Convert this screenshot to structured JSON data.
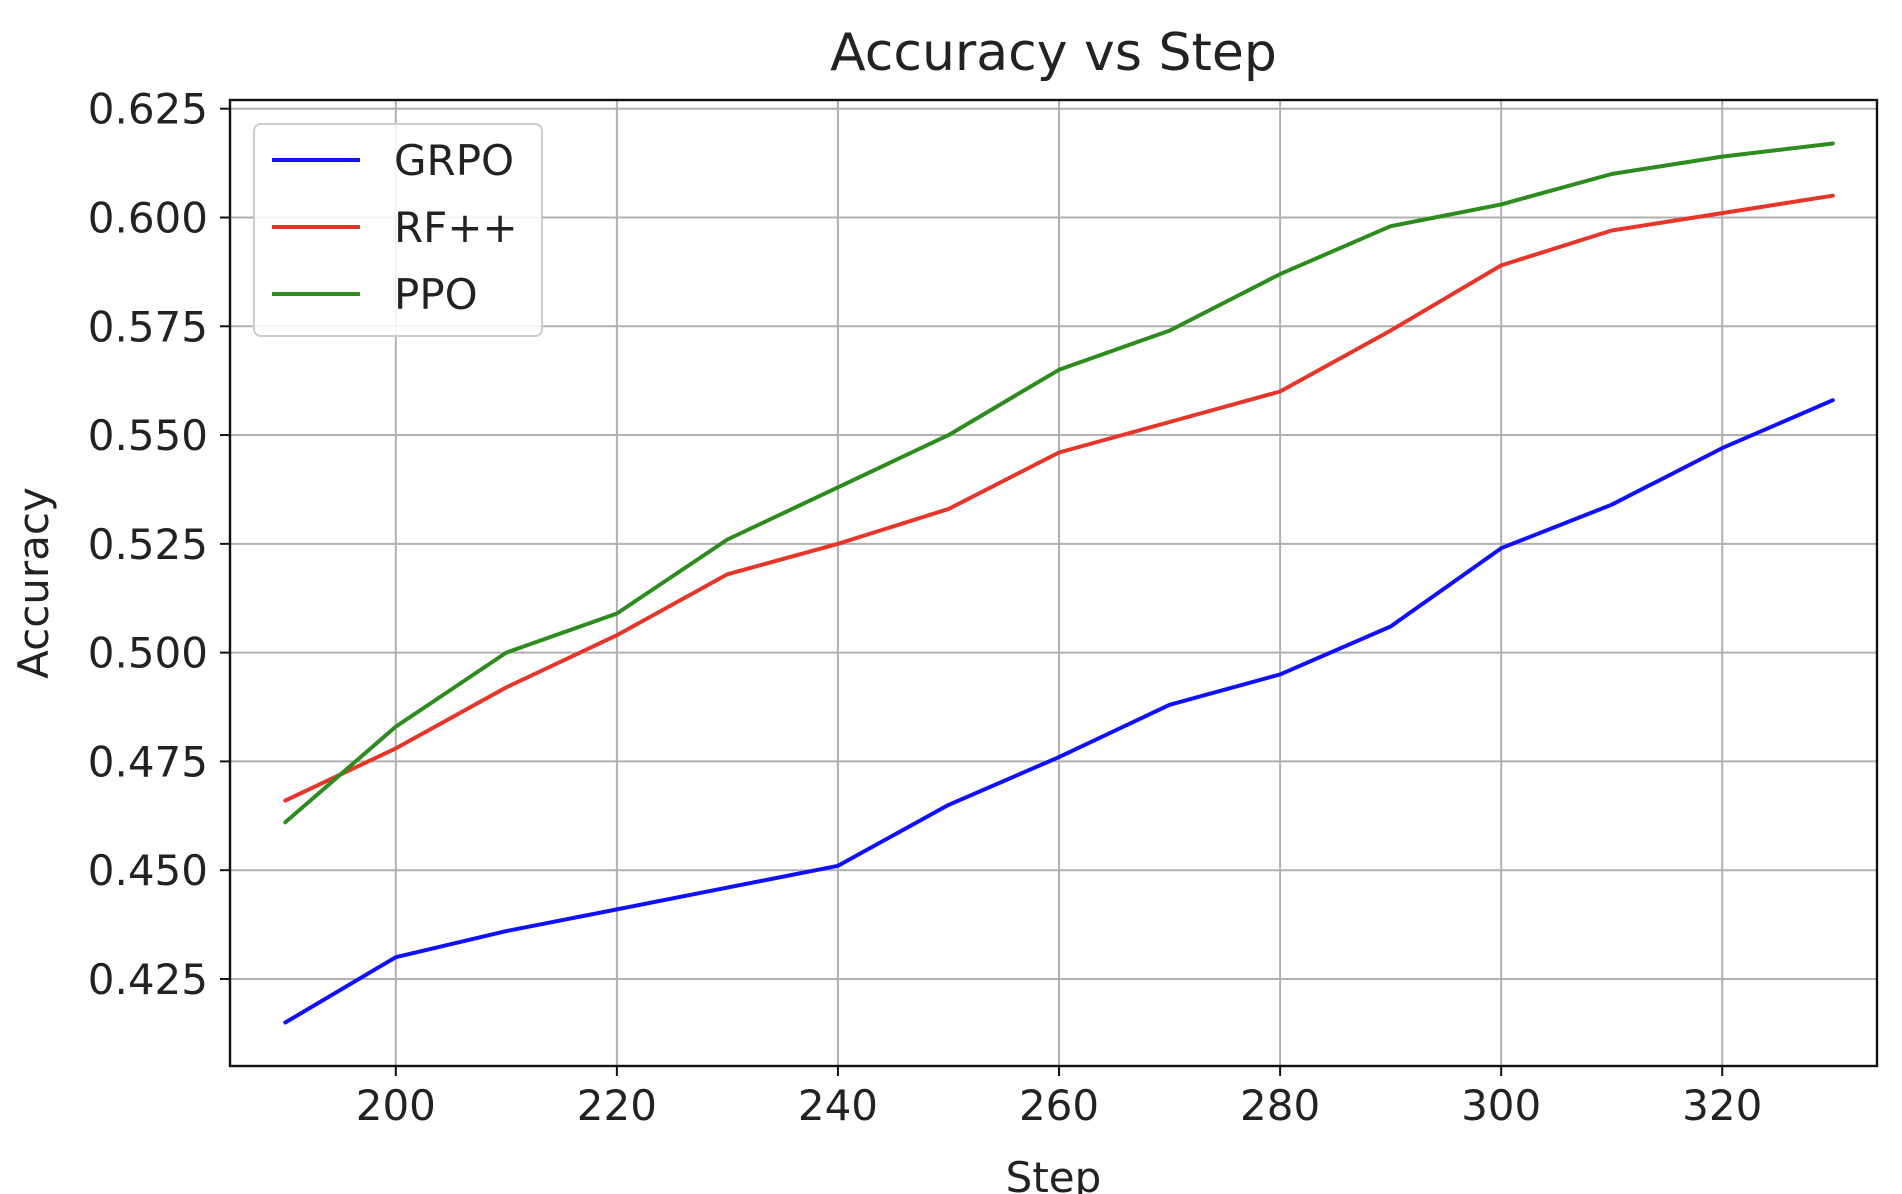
{
  "chart_data": {
    "type": "line",
    "title": "Accuracy vs Step",
    "xlabel": "Step",
    "ylabel": "Accuracy",
    "xlim": [
      185,
      334
    ],
    "ylim": [
      0.405,
      0.627
    ],
    "xticks": [
      200,
      220,
      240,
      260,
      280,
      300,
      320
    ],
    "yticks": [
      0.425,
      0.45,
      0.475,
      0.5,
      0.525,
      0.55,
      0.575,
      0.6,
      0.625
    ],
    "ytick_labels": [
      "0.425",
      "0.450",
      "0.475",
      "0.500",
      "0.525",
      "0.550",
      "0.575",
      "0.600",
      "0.625"
    ],
    "grid": true,
    "legend_position": "top-left",
    "x": [
      190,
      200,
      210,
      220,
      230,
      240,
      250,
      260,
      270,
      280,
      290,
      300,
      310,
      320,
      330
    ],
    "series": [
      {
        "name": "GRPO",
        "color": "#1010ff",
        "values": [
          0.415,
          0.43,
          0.436,
          0.441,
          0.446,
          0.451,
          0.465,
          0.476,
          0.488,
          0.495,
          0.506,
          0.524,
          0.534,
          0.547,
          0.558
        ]
      },
      {
        "name": "RF++",
        "color": "#e8352a",
        "values": [
          0.466,
          0.478,
          0.492,
          0.504,
          0.518,
          0.525,
          0.533,
          0.546,
          0.553,
          0.56,
          0.574,
          0.589,
          0.597,
          0.601,
          0.605
        ]
      },
      {
        "name": "PPO",
        "color": "#2e8b1e",
        "values": [
          0.461,
          0.483,
          0.5,
          0.509,
          0.526,
          0.538,
          0.55,
          0.565,
          0.574,
          0.587,
          0.598,
          0.603,
          0.61,
          0.614,
          0.617
        ]
      }
    ]
  }
}
